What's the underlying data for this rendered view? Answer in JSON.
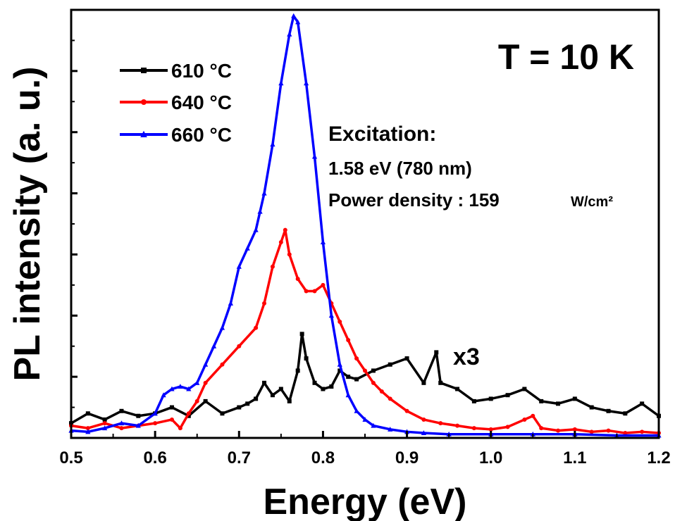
{
  "chart_data": {
    "type": "line",
    "xlabel": "Energy (eV)",
    "ylabel": "PL intensity (a. u.)",
    "xlim": [
      0.5,
      1.2
    ],
    "ylim": [
      0,
      3.5
    ],
    "x_ticks": [
      0.5,
      0.6,
      0.7,
      0.8,
      0.9,
      1.0,
      1.1,
      1.2
    ],
    "x_tick_labels": [
      "0.5",
      "0.6",
      "0.7",
      "0.8",
      "0.9",
      "1.0",
      "1.1",
      "1.2"
    ],
    "grid": false,
    "legend_position": "top-left",
    "annotations": {
      "temperature": "T = 10 K",
      "excitation_title": "Excitation:",
      "excitation_energy": "1.58 eV (780 nm)",
      "power_density_label": "Power density : 159",
      "power_density_unit": "W/cm²",
      "multiplier": "x3"
    },
    "series": [
      {
        "name": "610 °C",
        "color": "#000000",
        "marker": "square",
        "x": [
          0.5,
          0.52,
          0.54,
          0.56,
          0.58,
          0.6,
          0.62,
          0.64,
          0.66,
          0.68,
          0.7,
          0.71,
          0.72,
          0.73,
          0.74,
          0.75,
          0.76,
          0.77,
          0.775,
          0.78,
          0.79,
          0.8,
          0.81,
          0.82,
          0.83,
          0.84,
          0.86,
          0.88,
          0.9,
          0.92,
          0.935,
          0.94,
          0.96,
          0.98,
          1.0,
          1.02,
          1.04,
          1.06,
          1.08,
          1.1,
          1.12,
          1.14,
          1.16,
          1.18,
          1.2
        ],
        "y": [
          0.12,
          0.2,
          0.15,
          0.22,
          0.18,
          0.2,
          0.25,
          0.18,
          0.3,
          0.2,
          0.25,
          0.28,
          0.32,
          0.45,
          0.35,
          0.4,
          0.3,
          0.55,
          0.85,
          0.65,
          0.45,
          0.4,
          0.42,
          0.55,
          0.5,
          0.48,
          0.55,
          0.6,
          0.65,
          0.45,
          0.7,
          0.45,
          0.4,
          0.3,
          0.32,
          0.35,
          0.4,
          0.3,
          0.28,
          0.32,
          0.25,
          0.22,
          0.2,
          0.28,
          0.18
        ]
      },
      {
        "name": "640 °C",
        "color": "#ff0000",
        "marker": "circle",
        "x": [
          0.5,
          0.52,
          0.54,
          0.56,
          0.58,
          0.6,
          0.62,
          0.63,
          0.64,
          0.65,
          0.66,
          0.68,
          0.7,
          0.72,
          0.73,
          0.74,
          0.75,
          0.755,
          0.76,
          0.77,
          0.78,
          0.79,
          0.8,
          0.81,
          0.82,
          0.83,
          0.84,
          0.85,
          0.86,
          0.87,
          0.88,
          0.9,
          0.92,
          0.94,
          0.96,
          0.98,
          1.0,
          1.02,
          1.04,
          1.05,
          1.06,
          1.08,
          1.1,
          1.12,
          1.14,
          1.16,
          1.18,
          1.2
        ],
        "y": [
          0.1,
          0.08,
          0.12,
          0.08,
          0.1,
          0.12,
          0.15,
          0.08,
          0.2,
          0.3,
          0.45,
          0.6,
          0.75,
          0.9,
          1.1,
          1.4,
          1.6,
          1.7,
          1.5,
          1.3,
          1.2,
          1.2,
          1.25,
          1.1,
          0.95,
          0.8,
          0.65,
          0.55,
          0.45,
          0.38,
          0.32,
          0.22,
          0.15,
          0.12,
          0.1,
          0.08,
          0.07,
          0.09,
          0.15,
          0.18,
          0.08,
          0.06,
          0.07,
          0.05,
          0.06,
          0.04,
          0.05,
          0.04
        ]
      },
      {
        "name": "660 °C",
        "color": "#0000ff",
        "marker": "triangle",
        "x": [
          0.5,
          0.52,
          0.54,
          0.56,
          0.58,
          0.6,
          0.61,
          0.62,
          0.63,
          0.64,
          0.65,
          0.66,
          0.67,
          0.68,
          0.69,
          0.7,
          0.71,
          0.72,
          0.725,
          0.73,
          0.74,
          0.75,
          0.76,
          0.765,
          0.77,
          0.78,
          0.79,
          0.8,
          0.81,
          0.82,
          0.83,
          0.84,
          0.85,
          0.86,
          0.88,
          0.9,
          0.92,
          0.95,
          1.0,
          1.05,
          1.1,
          1.15,
          1.2
        ],
        "y": [
          0.06,
          0.05,
          0.08,
          0.12,
          0.1,
          0.2,
          0.35,
          0.4,
          0.42,
          0.4,
          0.45,
          0.6,
          0.75,
          0.9,
          1.1,
          1.4,
          1.55,
          1.7,
          1.85,
          2.0,
          2.4,
          2.9,
          3.3,
          3.45,
          3.4,
          2.9,
          2.3,
          1.6,
          1.0,
          0.6,
          0.35,
          0.22,
          0.15,
          0.1,
          0.07,
          0.05,
          0.04,
          0.03,
          0.03,
          0.03,
          0.03,
          0.02,
          0.02
        ]
      }
    ]
  }
}
